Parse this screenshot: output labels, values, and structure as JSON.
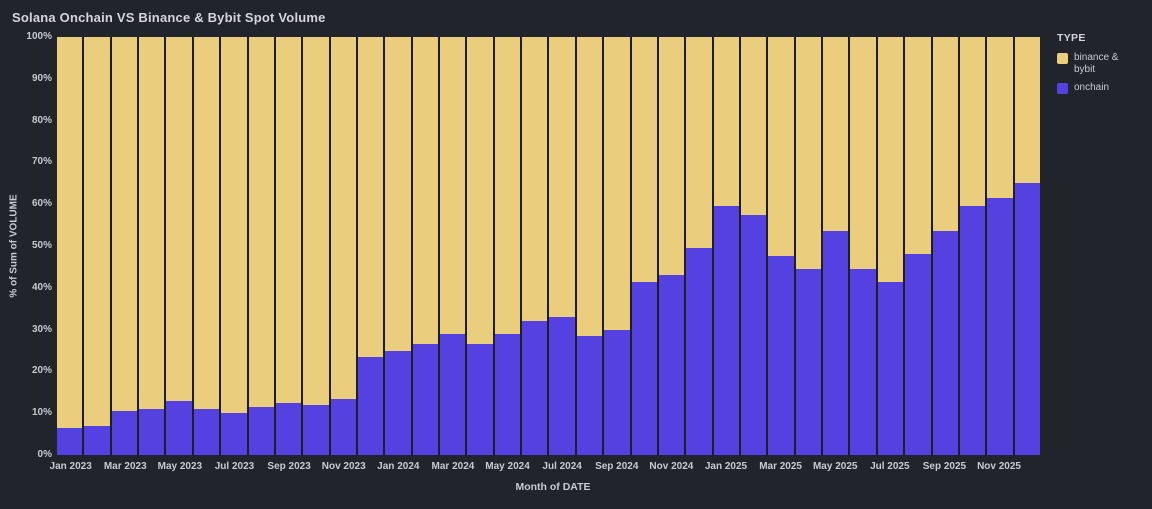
{
  "title": "Solana Onchain VS Binance & Bybit Spot Volume",
  "colors": {
    "background": "#22242b",
    "binance_bybit": "#eace7e",
    "onchain": "#5541e0",
    "separator": "#1e1f24",
    "text": "#c7cad0"
  },
  "legend": {
    "title": "TYPE",
    "items": [
      {
        "label": "binance & bybit",
        "series": "binance & bybit"
      },
      {
        "label": "onchain",
        "series": "onchain"
      }
    ]
  },
  "x_axis": {
    "title": "Month of DATE",
    "tick_every": 2
  },
  "y_axis": {
    "title": "% of Sum of VOLUME",
    "ticks": [
      "0%",
      "10%",
      "20%",
      "30%",
      "40%",
      "50%",
      "60%",
      "70%",
      "80%",
      "90%",
      "100%"
    ]
  },
  "chart_data": {
    "type": "bar",
    "stacked": true,
    "normalized": "percent",
    "title": "Solana Onchain VS Binance & Bybit Spot Volume",
    "xlabel": "Month of DATE",
    "ylabel": "% of Sum of VOLUME",
    "ylim": [
      0,
      100
    ],
    "grid": false,
    "legend_position": "top-right",
    "categories": [
      "Jan 2023",
      "Feb 2023",
      "Mar 2023",
      "Apr 2023",
      "May 2023",
      "Jun 2023",
      "Jul 2023",
      "Aug 2023",
      "Sep 2023",
      "Oct 2023",
      "Nov 2023",
      "Dec 2023",
      "Jan 2024",
      "Feb 2024",
      "Mar 2024",
      "Apr 2024",
      "May 2024",
      "Jun 2024",
      "Jul 2024",
      "Aug 2024",
      "Sep 2024",
      "Oct 2024",
      "Nov 2024",
      "Dec 2024",
      "Jan 2025",
      "Feb 2025",
      "Mar 2025",
      "Apr 2025",
      "May 2025",
      "Jun 2025",
      "Jul 2025",
      "Aug 2025",
      "Sep 2025",
      "Oct 2025",
      "Nov 2025",
      "Dec 2025"
    ],
    "series": [
      {
        "name": "binance & bybit",
        "values": [
          93.5,
          93,
          89.5,
          89,
          87,
          89,
          90,
          88.5,
          87.5,
          88,
          86.5,
          76.5,
          75,
          73.5,
          71,
          73.5,
          71,
          68,
          67,
          71.5,
          70,
          58.5,
          57,
          50.5,
          40.5,
          42.5,
          52.5,
          55.5,
          46.5,
          55.5,
          58.5,
          52,
          46.5,
          40.5,
          38.5,
          35
        ]
      },
      {
        "name": "onchain",
        "values": [
          6.5,
          7,
          10.5,
          11,
          13,
          11,
          10,
          11.5,
          12.5,
          12,
          13.5,
          23.5,
          25,
          26.5,
          29,
          26.5,
          29,
          32,
          33,
          28.5,
          30,
          41.5,
          43,
          49.5,
          59.5,
          57.5,
          47.5,
          44.5,
          53.5,
          44.5,
          41.5,
          48,
          53.5,
          59.5,
          61.5,
          65
        ]
      }
    ]
  }
}
